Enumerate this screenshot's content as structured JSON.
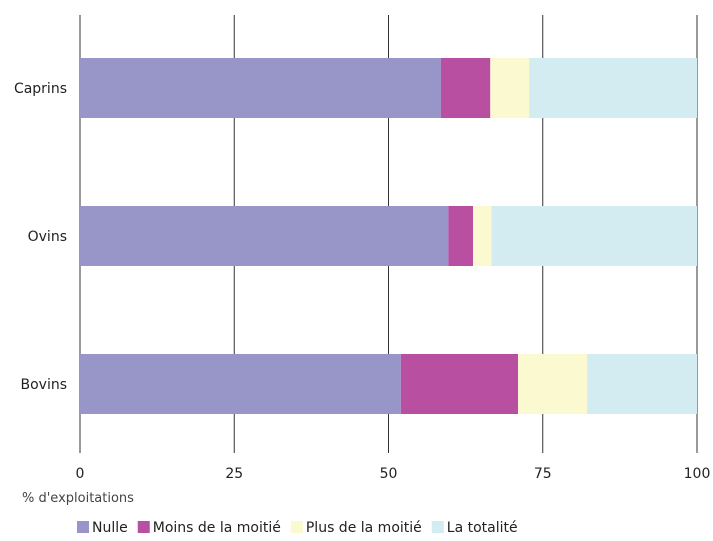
{
  "chart_data": {
    "type": "bar",
    "orientation": "horizontal",
    "stacked": true,
    "categories": [
      "Caprins",
      "Ovins",
      "Bovins"
    ],
    "series": [
      {
        "name": "Nulle",
        "values": [
          58.5,
          59.7,
          52.0
        ],
        "color": "#9896c8"
      },
      {
        "name": "Moins de la moitié",
        "values": [
          8.0,
          4.0,
          19.0
        ],
        "color": "#b84fa0"
      },
      {
        "name": "Plus de la moitié",
        "values": [
          6.3,
          3.0,
          11.2
        ],
        "color": "#fbf9d0"
      },
      {
        "name": "La totalité",
        "values": [
          27.2,
          33.3,
          17.8
        ],
        "color": "#d3ecf2"
      }
    ],
    "xlabel": "% d'exploitations",
    "xlim": [
      0,
      100
    ],
    "xticks": [
      "0",
      "25",
      "50",
      "75",
      "100"
    ],
    "grid": true,
    "legend_position": "bottom"
  }
}
